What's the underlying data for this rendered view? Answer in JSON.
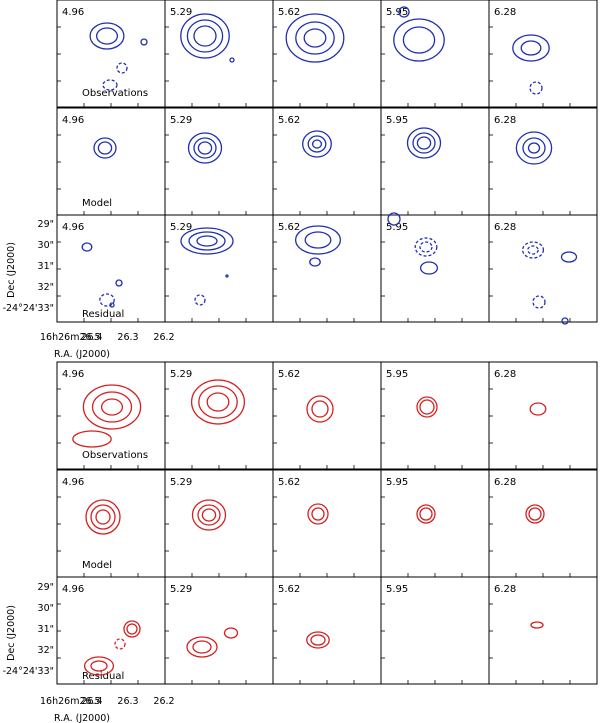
{
  "figure": {
    "colors": {
      "top": "#1f2fb0",
      "bottom": "#d42020",
      "frame": "#000000"
    }
  },
  "chart_data": [
    {
      "type": "contour-grid",
      "block": "top",
      "color": "#1f2fb0",
      "columns": [
        "4.96",
        "5.29",
        "5.62",
        "5.95",
        "6.28"
      ],
      "rows": [
        "Observations",
        "Model",
        "Residual"
      ],
      "xlabel": "R.A. (J2000)",
      "ylabel": "Dec (J2000)",
      "xticks": [
        "16h26m26.5",
        "26.4",
        "26.3",
        "26.2"
      ],
      "yticks": [
        "29\"",
        "30\"",
        "31\"",
        "32\"",
        "-24°24'33\""
      ]
    },
    {
      "type": "contour-grid",
      "block": "bottom",
      "color": "#d42020",
      "columns": [
        "4.96",
        "5.29",
        "5.62",
        "5.95",
        "6.28"
      ],
      "rows": [
        "Observations",
        "Model",
        "Residual"
      ],
      "xlabel": "R.A. (J2000)",
      "ylabel": "Dec (J2000)",
      "xticks": [
        "16h26m26.5",
        "26.4",
        "26.3",
        "26.2"
      ],
      "yticks": [
        "29\"",
        "30\"",
        "31\"",
        "32\"",
        "-24°24'33\""
      ]
    }
  ]
}
